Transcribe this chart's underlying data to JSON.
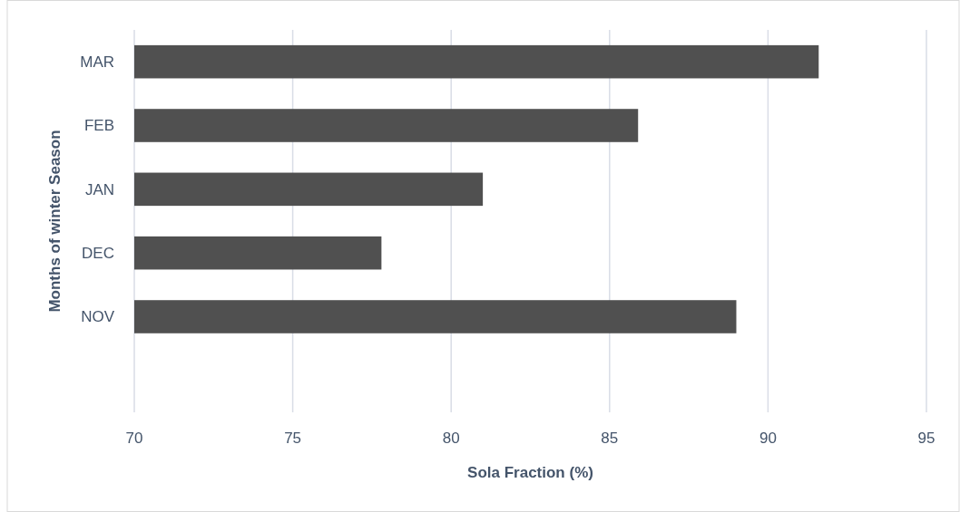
{
  "chart_data": {
    "type": "bar",
    "orientation": "horizontal",
    "xlabel": "Sola Fraction (%)",
    "ylabel": "Months of winter Season",
    "categories": [
      "MAR",
      "FEB",
      "JAN",
      "DEC",
      "NOV",
      null
    ],
    "values": [
      91.6,
      85.9,
      81.0,
      77.8,
      89.0,
      null
    ],
    "color": "#505050",
    "xlim": [
      70,
      95
    ],
    "xticks": [
      70,
      75,
      80,
      85,
      90,
      95
    ],
    "grid": "x"
  }
}
